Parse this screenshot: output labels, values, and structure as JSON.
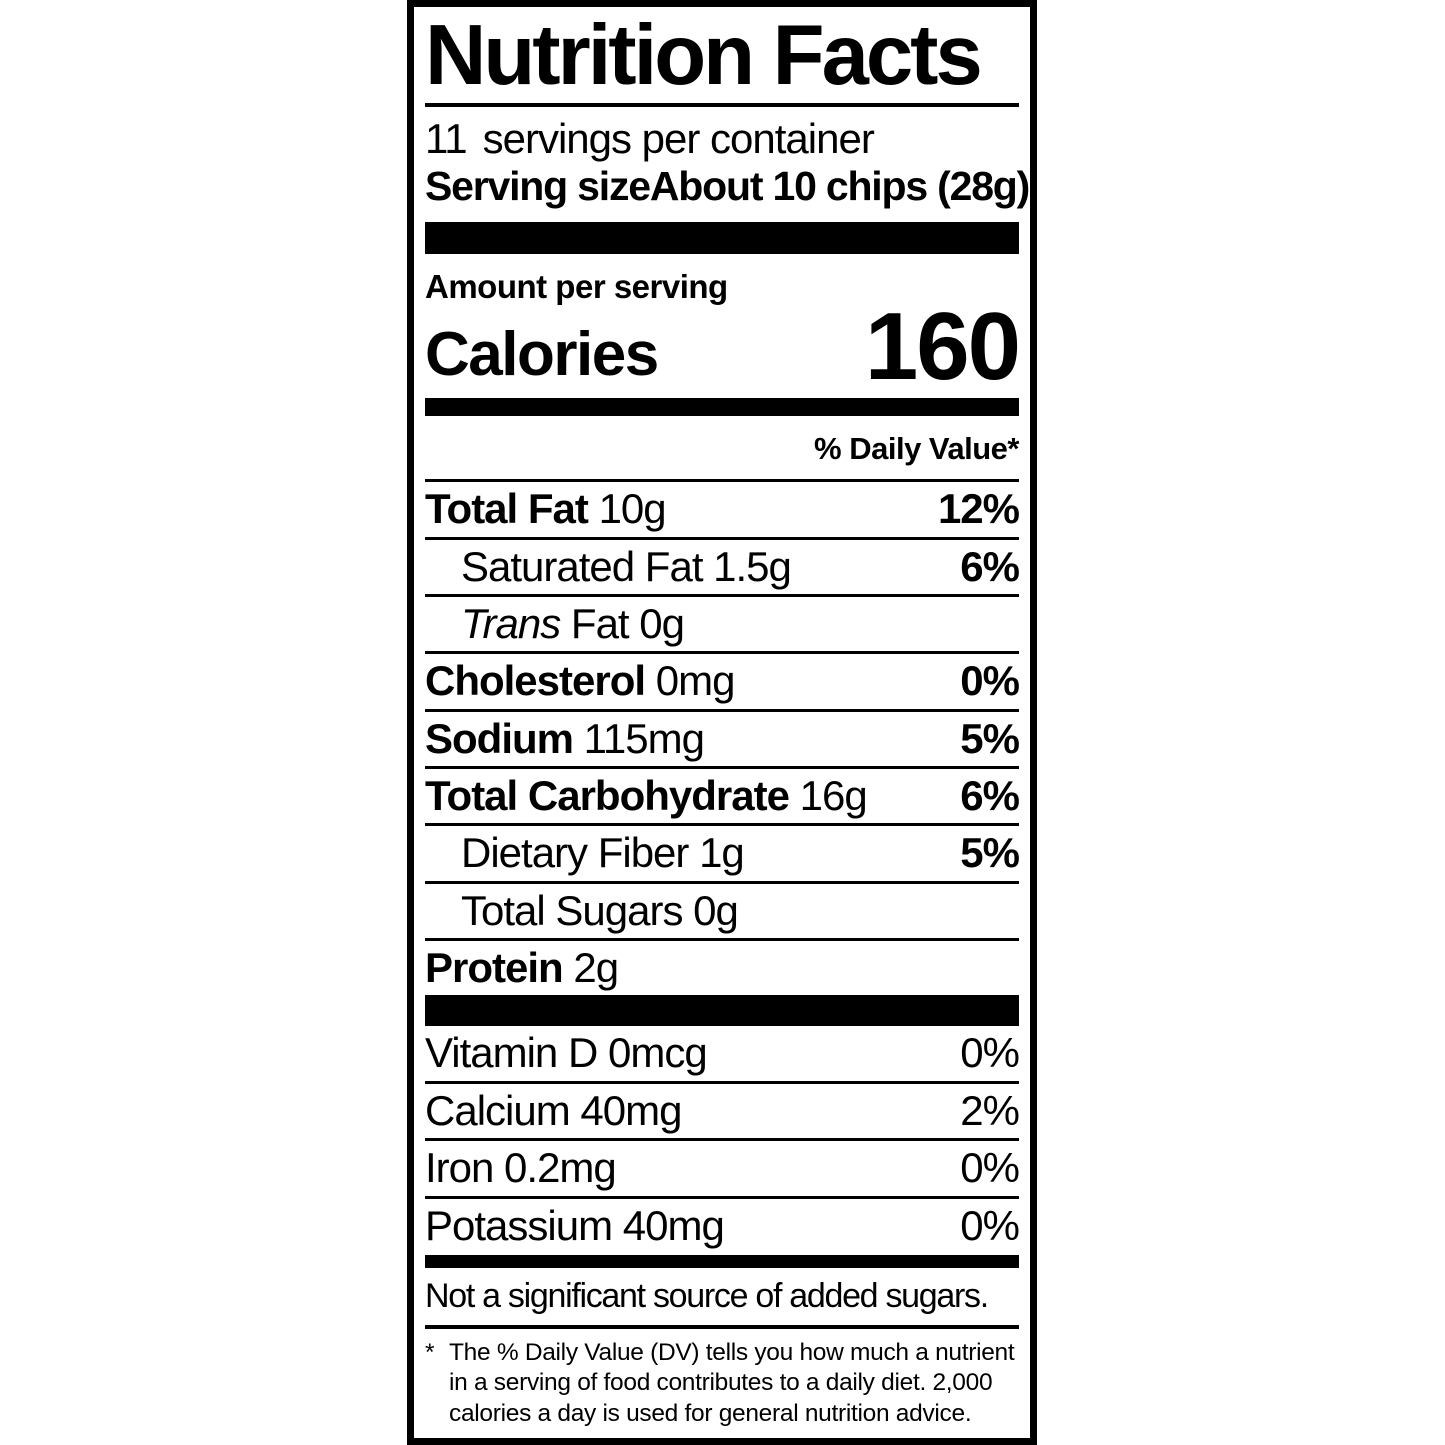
{
  "label": {
    "title": "Nutrition Facts",
    "servings_per_container": {
      "count": "11",
      "text": "servings per container"
    },
    "serving_size": {
      "label": "Serving size",
      "value": "About 10 chips (28g)"
    },
    "amount_per_serving": "Amount per serving",
    "calories": {
      "label": "Calories",
      "value": "160"
    },
    "daily_value_header": "% Daily Value*",
    "nutrients": [
      {
        "name": "Total Fat",
        "amount": "10g",
        "dv": "12%",
        "bold": true,
        "indent": 0,
        "italic_prefix": ""
      },
      {
        "name": "Saturated Fat",
        "amount": "1.5g",
        "dv": "6%",
        "bold": false,
        "indent": 1,
        "italic_prefix": ""
      },
      {
        "name": "Fat",
        "amount": "0g",
        "dv": "",
        "bold": false,
        "indent": 1,
        "italic_prefix": "Trans"
      },
      {
        "name": "Cholesterol",
        "amount": "0mg",
        "dv": "0%",
        "bold": true,
        "indent": 0,
        "italic_prefix": ""
      },
      {
        "name": "Sodium",
        "amount": "115mg",
        "dv": "5%",
        "bold": true,
        "indent": 0,
        "italic_prefix": ""
      },
      {
        "name": "Total Carbohydrate",
        "amount": "16g",
        "dv": "6%",
        "bold": true,
        "indent": 0,
        "italic_prefix": ""
      },
      {
        "name": "Dietary Fiber",
        "amount": "1g",
        "dv": "5%",
        "bold": false,
        "indent": 1,
        "italic_prefix": ""
      },
      {
        "name": "Total Sugars",
        "amount": "0g",
        "dv": "",
        "bold": false,
        "indent": 1,
        "italic_prefix": ""
      },
      {
        "name": "Protein",
        "amount": "2g",
        "dv": "",
        "bold": true,
        "indent": 0,
        "italic_prefix": ""
      }
    ],
    "micronutrients": [
      {
        "name": "Vitamin D",
        "amount": "0mcg",
        "dv": "0%"
      },
      {
        "name": "Calcium",
        "amount": "40mg",
        "dv": "2%"
      },
      {
        "name": "Iron",
        "amount": "0.2mg",
        "dv": "0%"
      },
      {
        "name": "Potassium",
        "amount": "40mg",
        "dv": "0%"
      }
    ],
    "not_significant_note": "Not a significant source of added sugars.",
    "footnote_marker": "*",
    "footnote": "The % Daily Value (DV) tells you how much a nutrient in a serving of food contributes to a daily diet. 2,000 calories a day is used for general nutrition advice."
  },
  "colors": {
    "ink": "#000000",
    "background": "#ffffff"
  }
}
